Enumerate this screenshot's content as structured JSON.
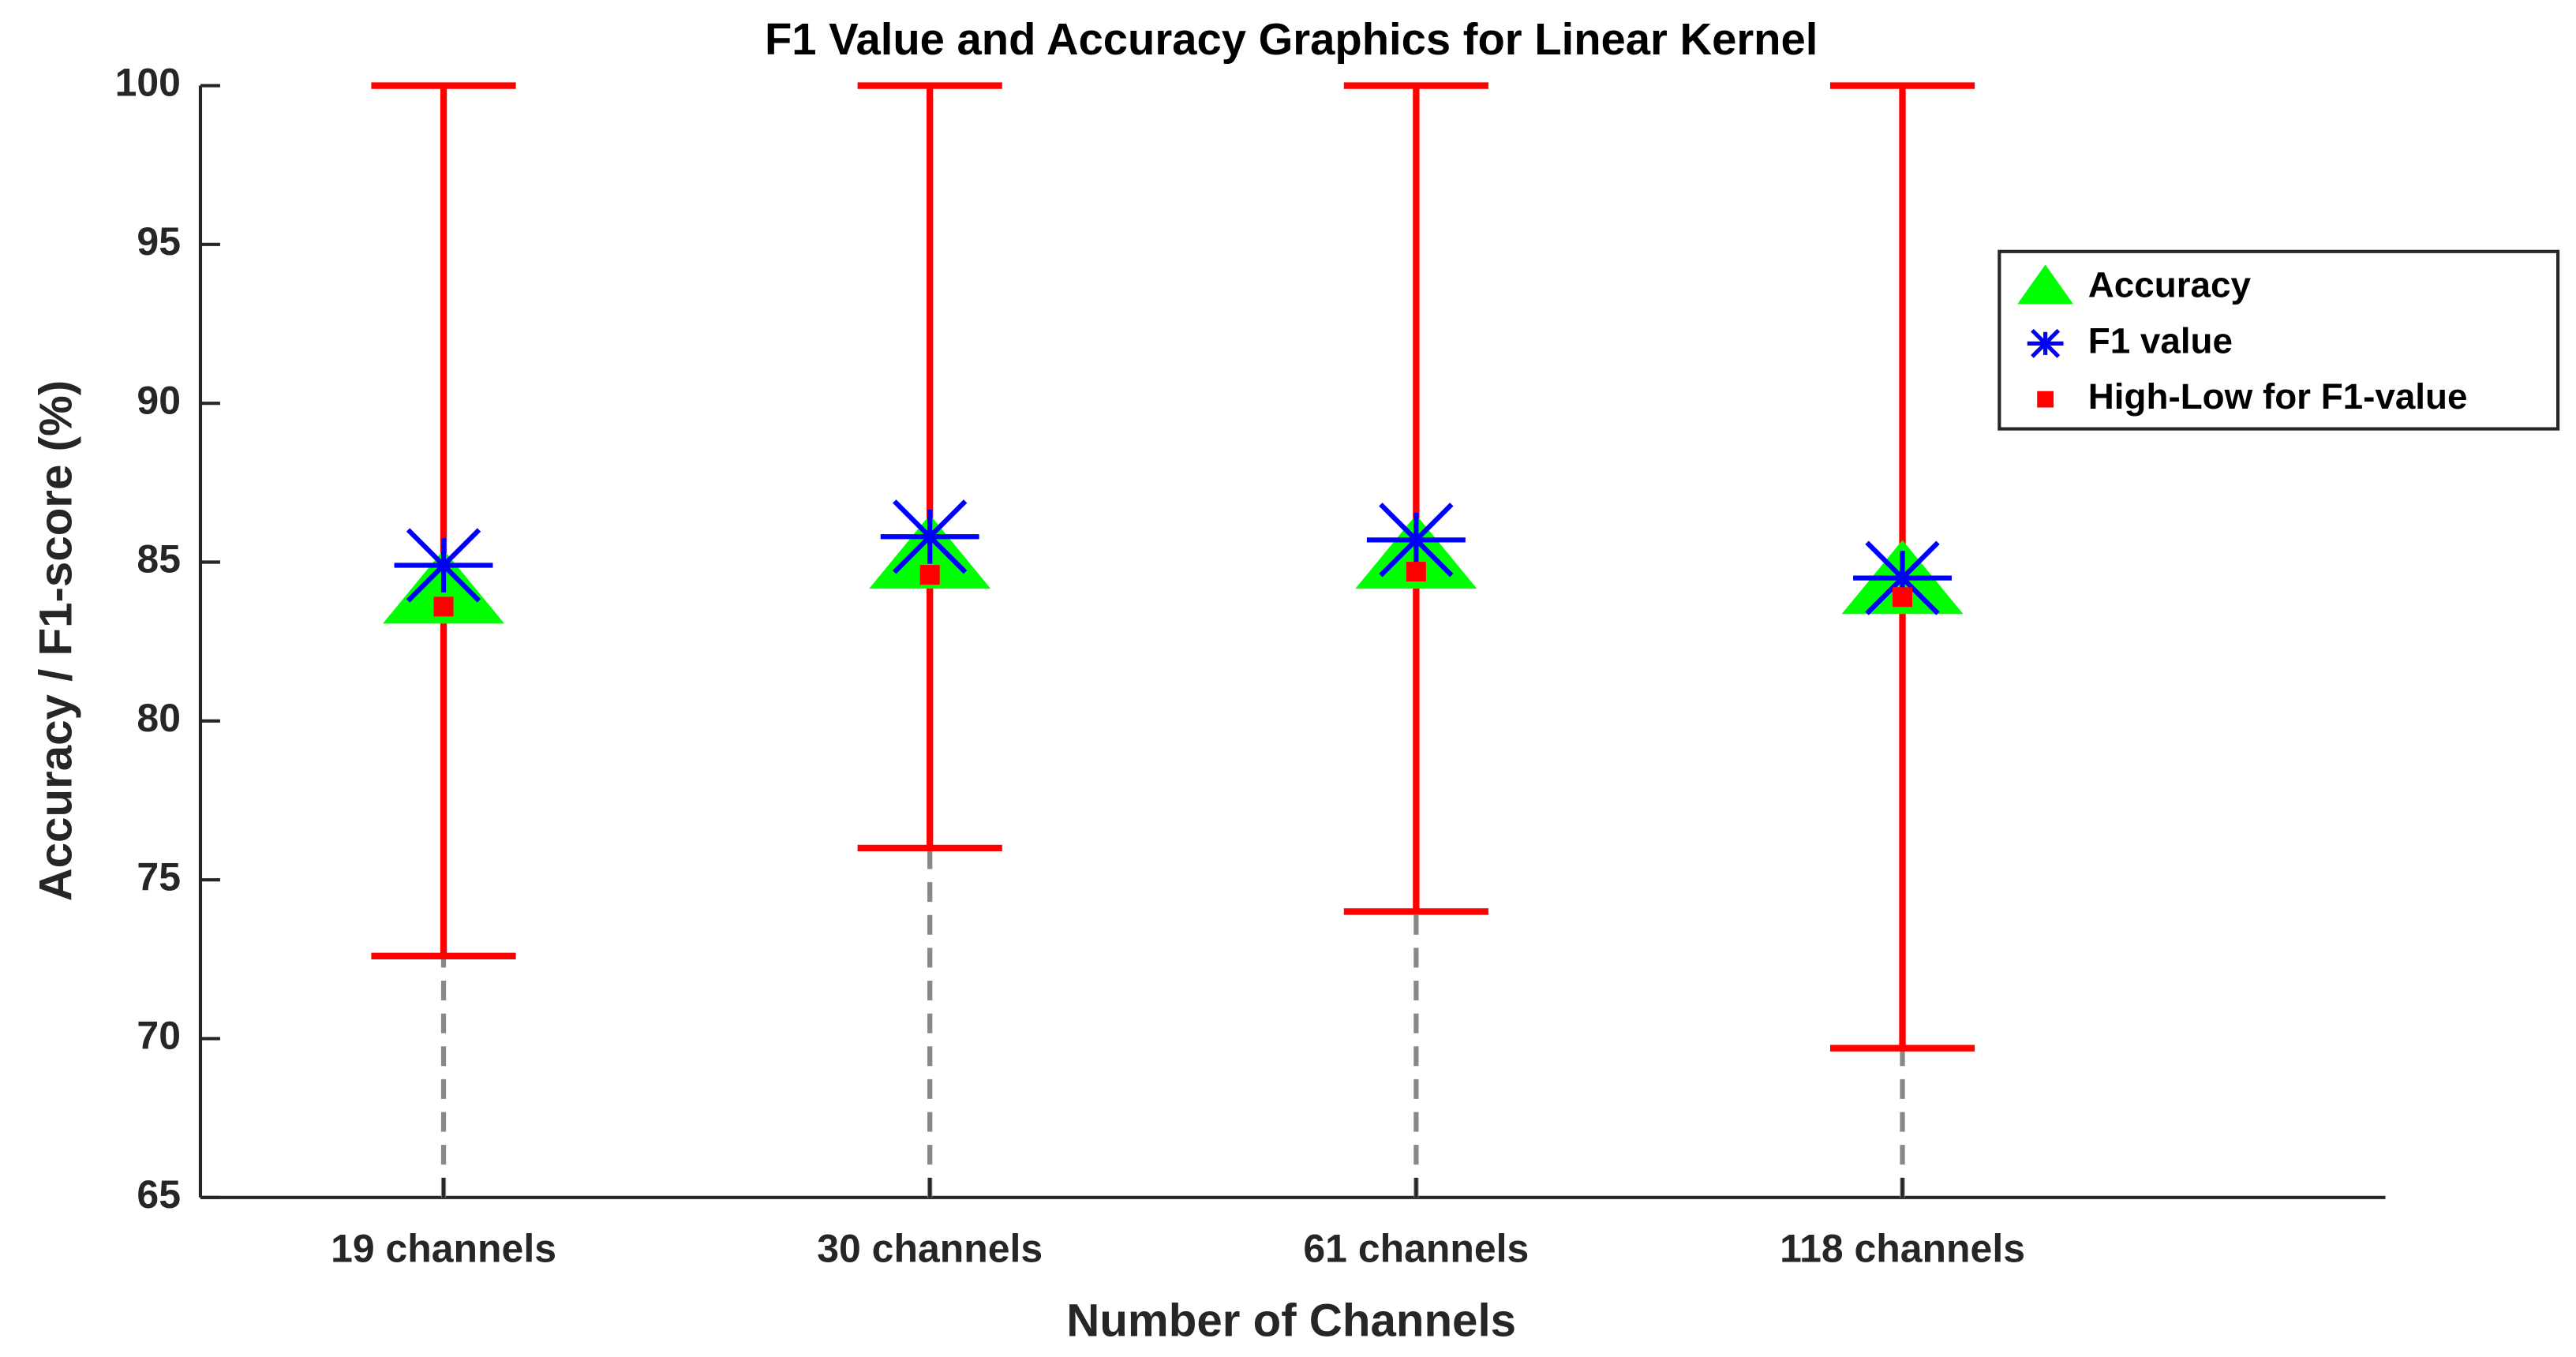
{
  "chart_data": {
    "type": "errorbar",
    "title": "F1 Value and Accuracy Graphics for Linear Kernel",
    "xlabel": "Number of Channels",
    "ylabel": "Accuracy / F1-score (%)",
    "categories": [
      "19 channels",
      "30 channels",
      "61 channels",
      "118 channels"
    ],
    "series": [
      {
        "name": "Accuracy",
        "color": "#00ff00",
        "marker": "triangle",
        "values": [
          84.1,
          85.2,
          85.2,
          84.4
        ]
      },
      {
        "name": "F1 value",
        "color": "#0000ff",
        "marker": "asterisk",
        "values": [
          84.9,
          85.8,
          85.7,
          84.5
        ]
      },
      {
        "name": "High-Low for F1-value",
        "color": "#ff0000",
        "marker": "square",
        "values": [
          83.6,
          84.6,
          84.7,
          83.9
        ],
        "high": [
          100,
          100,
          100,
          100
        ],
        "low": [
          72.6,
          76,
          74,
          69.7
        ]
      }
    ],
    "ylim": [
      65,
      100
    ],
    "yticks": [
      65,
      70,
      75,
      80,
      85,
      90,
      95,
      100
    ],
    "legend": "upper right"
  }
}
